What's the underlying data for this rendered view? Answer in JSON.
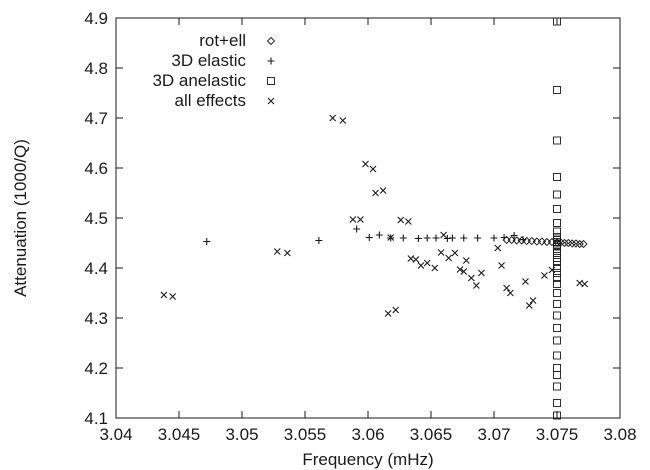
{
  "chart_data": {
    "type": "scatter",
    "xlabel": "Frequency (mHz)",
    "ylabel": "Attenuation (1000/Q)",
    "xlim": [
      3.04,
      3.08
    ],
    "ylim": [
      4.1,
      4.9
    ],
    "x_ticks": [
      "3.04",
      "3.045",
      "3.05",
      "3.055",
      "3.06",
      "3.065",
      "3.07",
      "3.075",
      "3.08"
    ],
    "y_ticks": [
      "4.1",
      "4.2",
      "4.3",
      "4.4",
      "4.5",
      "4.6",
      "4.7",
      "4.8",
      "4.9"
    ],
    "grid": false,
    "legend_position": "top-left",
    "marker_color": "#1a1a1a",
    "series": [
      {
        "name": "rot+ell",
        "marker": "diamond",
        "x": [
          3.071,
          3.0714,
          3.0718,
          3.0722,
          3.0726,
          3.073,
          3.0734,
          3.0738,
          3.0742,
          3.0746,
          3.075,
          3.0753,
          3.0756,
          3.0759,
          3.0762,
          3.0765,
          3.0768,
          3.0771
        ],
        "y": [
          4.456,
          4.456,
          4.455,
          4.455,
          4.454,
          4.454,
          4.453,
          4.453,
          4.452,
          4.452,
          4.451,
          4.451,
          4.45,
          4.45,
          4.449,
          4.449,
          4.448,
          4.448
        ]
      },
      {
        "name": "3D elastic",
        "marker": "plus",
        "x": [
          3.0472,
          3.0561,
          3.0591,
          3.0601,
          3.0609,
          3.0618,
          3.0628,
          3.064,
          3.0647,
          3.0654,
          3.0663,
          3.0667,
          3.0676,
          3.0687,
          3.07,
          3.0708,
          3.0716,
          3.0723
        ],
        "y": [
          4.453,
          4.455,
          4.478,
          4.461,
          4.466,
          4.46,
          4.46,
          4.459,
          4.46,
          4.46,
          4.459,
          4.46,
          4.46,
          4.46,
          4.46,
          4.461,
          4.465,
          4.457
        ]
      },
      {
        "name": "3D anelastic",
        "marker": "square",
        "x": [
          3.075,
          3.075,
          3.075,
          3.075,
          3.075,
          3.075,
          3.075,
          3.075,
          3.075,
          3.075,
          3.075,
          3.075,
          3.075,
          3.075,
          3.075,
          3.075,
          3.075,
          3.075,
          3.075,
          3.075,
          3.075,
          3.075,
          3.075,
          3.075,
          3.075,
          3.075,
          3.075,
          3.075,
          3.075,
          3.075,
          3.075,
          3.075,
          3.075
        ],
        "y": [
          4.893,
          4.756,
          4.655,
          4.582,
          4.547,
          4.518,
          4.49,
          4.473,
          4.462,
          4.456,
          4.452,
          4.449,
          4.446,
          4.443,
          4.438,
          4.43,
          4.42,
          4.412,
          4.4,
          4.39,
          4.38,
          4.368,
          4.35,
          4.328,
          4.305,
          4.28,
          4.255,
          4.225,
          4.2,
          4.186,
          4.163,
          4.13,
          4.105
        ]
      },
      {
        "name": "all effects",
        "marker": "cross",
        "x": [
          3.0438,
          3.0445,
          3.0528,
          3.0536,
          3.0572,
          3.058,
          3.0588,
          3.0594,
          3.0598,
          3.0604,
          3.0606,
          3.0612,
          3.0616,
          3.0618,
          3.0622,
          3.0626,
          3.0632,
          3.0634,
          3.0638,
          3.0642,
          3.0647,
          3.0653,
          3.0658,
          3.066,
          3.0664,
          3.0669,
          3.0673,
          3.0676,
          3.0678,
          3.0682,
          3.0686,
          3.069,
          3.0703,
          3.0706,
          3.071,
          3.0713,
          3.0725,
          3.0728,
          3.0731,
          3.074,
          3.0746,
          3.0768,
          3.0772
        ],
        "y": [
          4.346,
          4.343,
          4.433,
          4.43,
          4.7,
          4.695,
          4.497,
          4.497,
          4.608,
          4.598,
          4.55,
          4.555,
          4.309,
          4.461,
          4.316,
          4.496,
          4.493,
          4.419,
          4.417,
          4.405,
          4.41,
          4.4,
          4.431,
          4.466,
          4.42,
          4.43,
          4.397,
          4.393,
          4.415,
          4.38,
          4.365,
          4.39,
          4.44,
          4.405,
          4.36,
          4.35,
          4.373,
          4.325,
          4.335,
          4.385,
          4.396,
          4.37,
          4.368
        ]
      }
    ]
  }
}
